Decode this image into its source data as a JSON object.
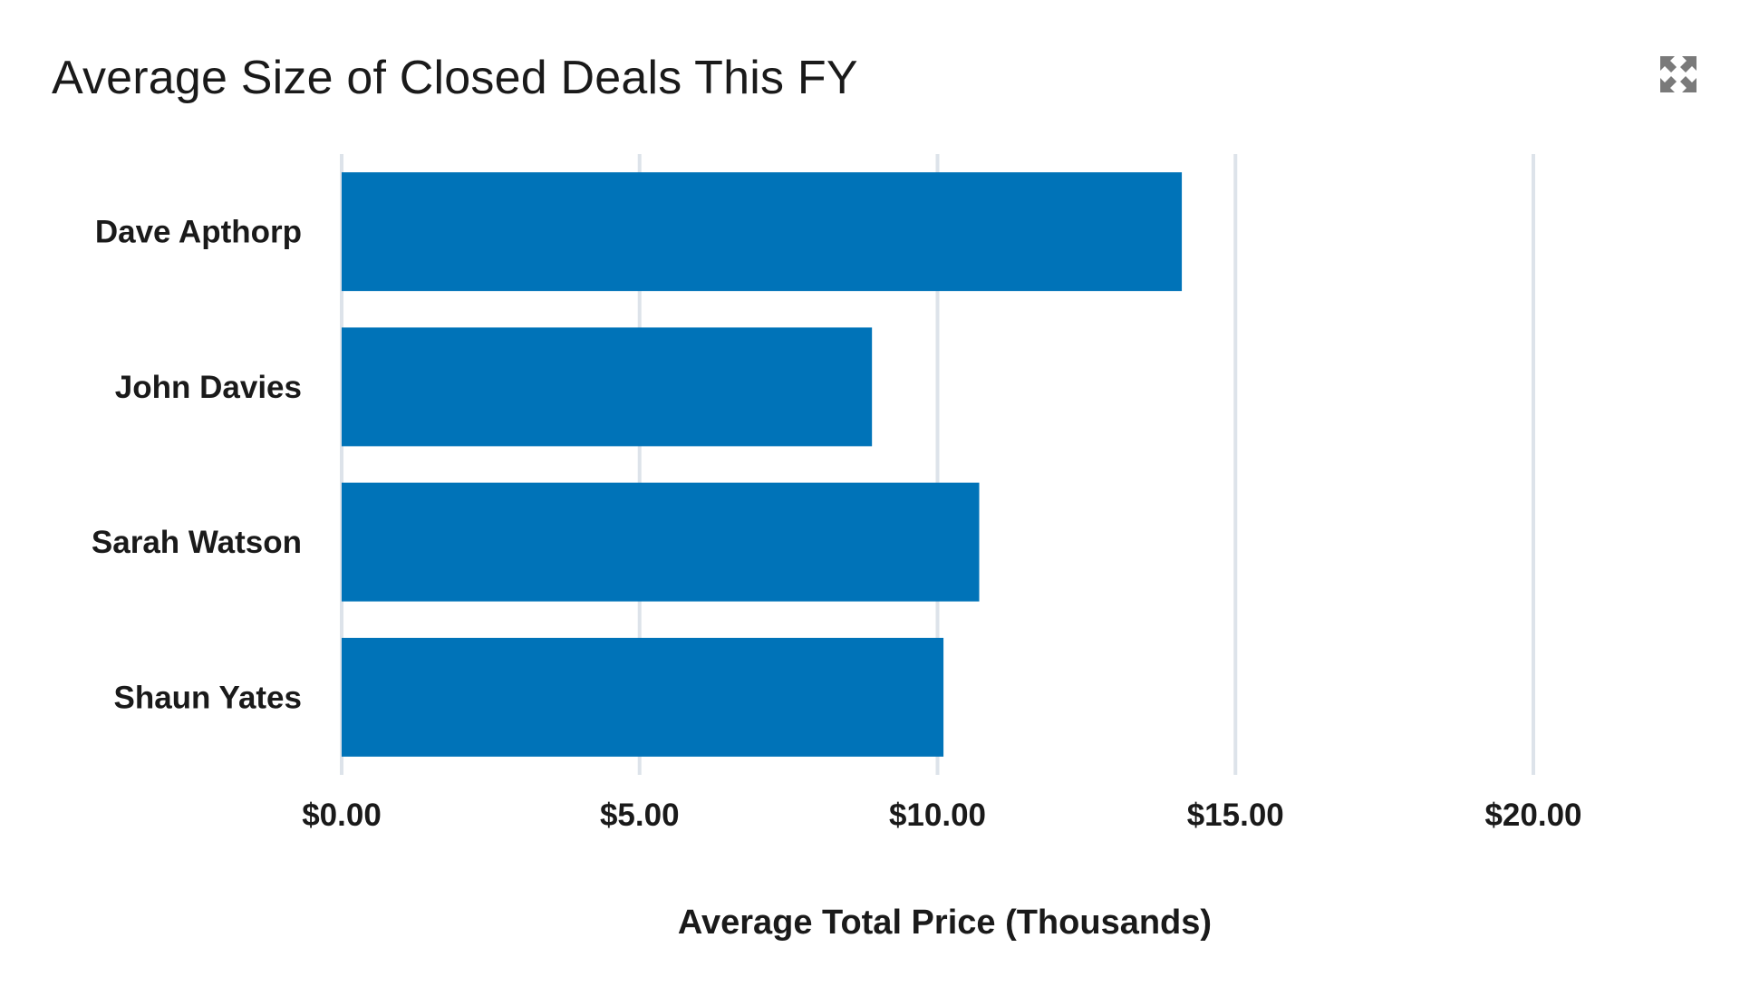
{
  "chart": {
    "title": "Average Size of Closed Deals This FY",
    "expand_icon": "expand-arrows-icon",
    "icon_color": "#7a7a7a"
  },
  "chart_data": {
    "type": "bar",
    "orientation": "horizontal",
    "title": "Average Size of Closed Deals This FY",
    "xlabel": "Average Total Price (Thousands)",
    "ylabel": "",
    "categories": [
      "Dave Apthorp",
      "John Davies",
      "Sarah Watson",
      "Shaun Yates"
    ],
    "values": [
      14.1,
      8.9,
      10.7,
      10.1
    ],
    "xlim": [
      0,
      20
    ],
    "x_ticks": [
      0,
      5,
      10,
      15,
      20
    ],
    "x_tick_labels": [
      "$0.00",
      "$5.00",
      "$10.00",
      "$15.00",
      "$20.00"
    ],
    "grid": true,
    "bar_color": "#0073b8",
    "grid_color": "#dde3ea"
  }
}
